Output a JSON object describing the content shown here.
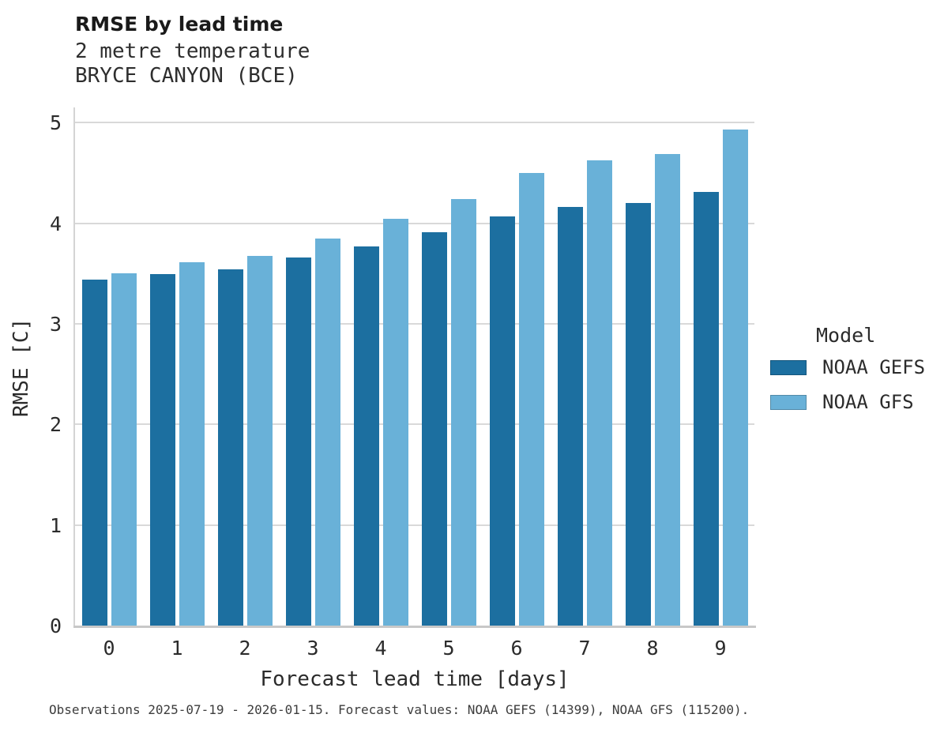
{
  "chart_data": {
    "type": "bar",
    "title": "RMSE by lead time",
    "subtitle_line1": "2 metre temperature",
    "subtitle_line2": "BRYCE CANYON (BCE)",
    "xlabel": "Forecast lead time [days]",
    "ylabel": "RMSE [C]",
    "categories": [
      "0",
      "1",
      "2",
      "3",
      "4",
      "5",
      "6",
      "7",
      "8",
      "9"
    ],
    "series": [
      {
        "name": "NOAA GEFS",
        "color": "#1c6fa0",
        "values": [
          3.45,
          3.5,
          3.55,
          3.67,
          3.78,
          3.92,
          4.08,
          4.17,
          4.21,
          4.32
        ]
      },
      {
        "name": "NOAA GFS",
        "color": "#69b1d8",
        "values": [
          3.51,
          3.62,
          3.68,
          3.86,
          4.05,
          4.25,
          4.51,
          4.63,
          4.7,
          4.94
        ]
      }
    ],
    "yticks": [
      0,
      1,
      2,
      3,
      4,
      5
    ],
    "ylim": [
      0,
      5.16
    ],
    "grid": "horizontal",
    "legend_title": "Model",
    "legend_position": "right",
    "caption": "Observations 2025-07-19 - 2026-01-15. Forecast values: NOAA GEFS (14399), NOAA GFS (115200)."
  }
}
